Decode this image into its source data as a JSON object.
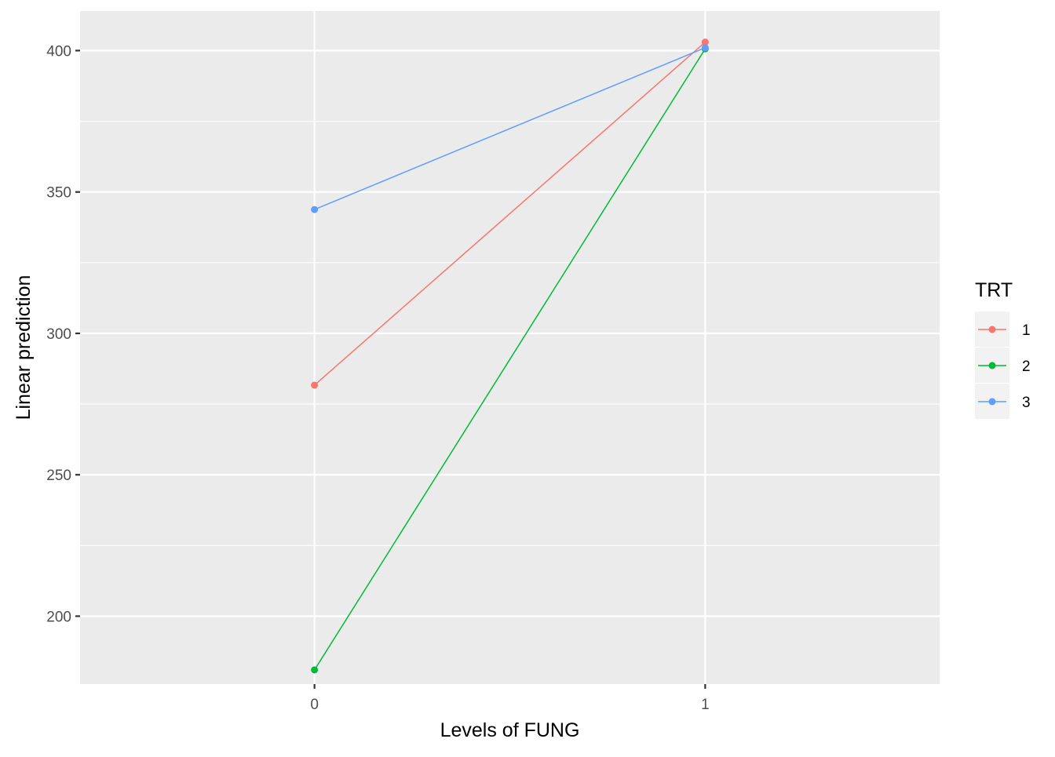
{
  "chart_data": {
    "type": "line",
    "title": "",
    "xlabel": "Levels of FUNG",
    "ylabel": "Linear prediction",
    "categories": [
      "0",
      "1"
    ],
    "xlim": [
      -0.6,
      1.6
    ],
    "ylim": [
      176,
      414
    ],
    "y_major_ticks": [
      200,
      250,
      300,
      350,
      400
    ],
    "y_minor_ticks": [
      175,
      225,
      275,
      325,
      375
    ],
    "grid": true,
    "legend": {
      "title": "TRT",
      "position": "right"
    },
    "series": [
      {
        "name": "1",
        "color": "#F8766D",
        "values": [
          281.7,
          403.0
        ]
      },
      {
        "name": "2",
        "color": "#00BA38",
        "values": [
          181.0,
          400.6
        ]
      },
      {
        "name": "3",
        "color": "#619CFF",
        "values": [
          343.8,
          401.0
        ]
      }
    ]
  }
}
